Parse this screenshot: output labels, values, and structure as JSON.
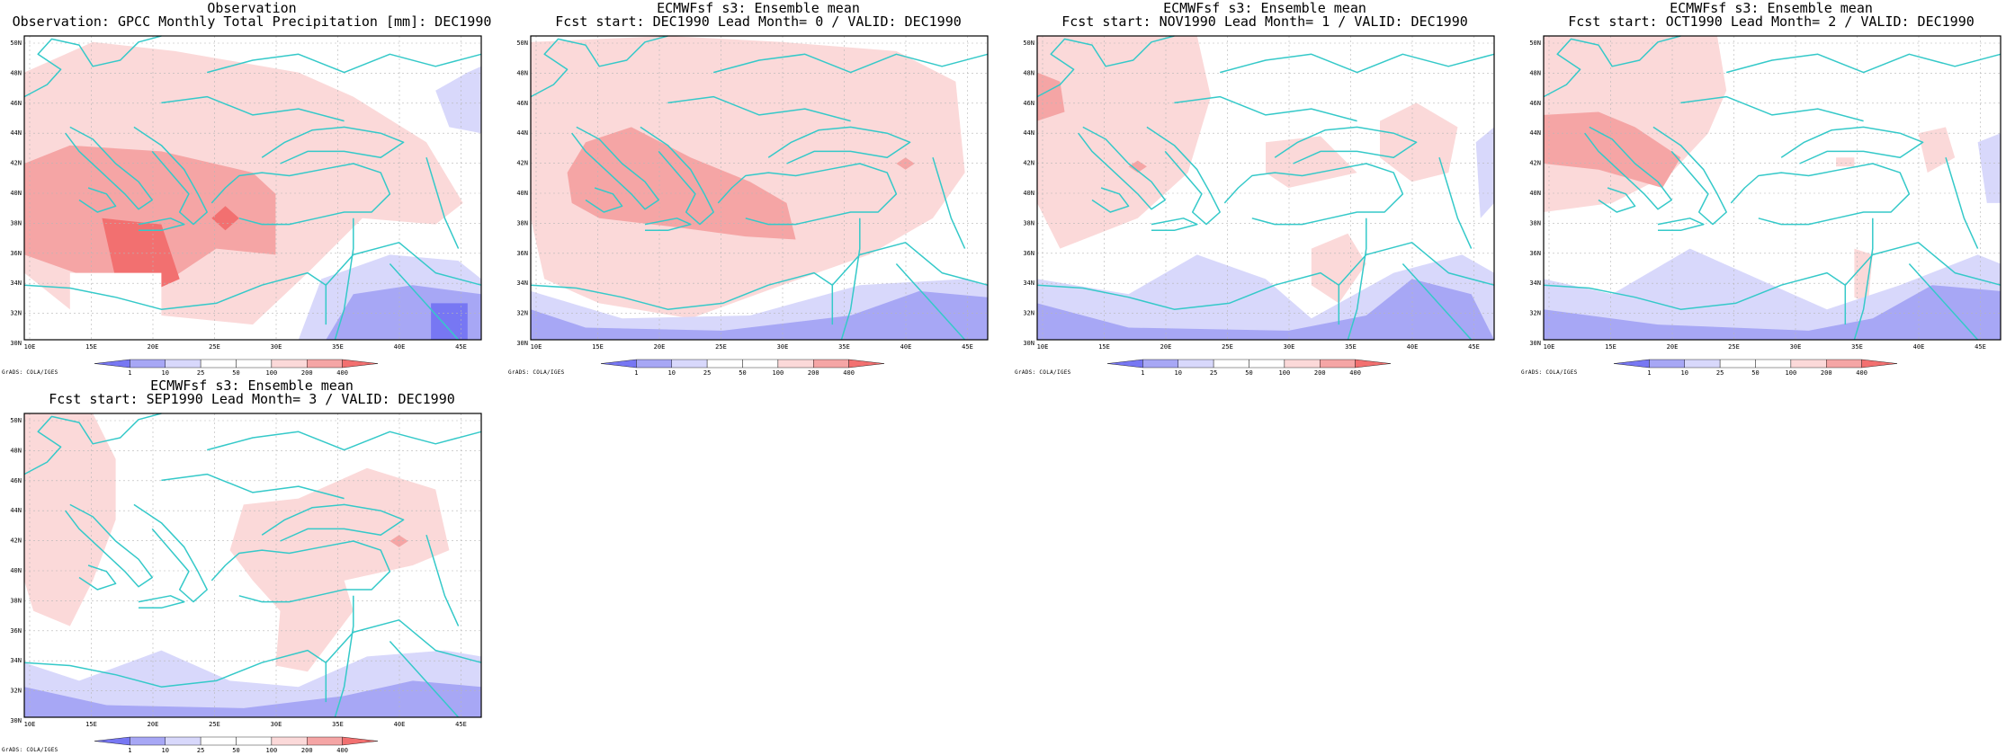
{
  "colors": {
    "neg3": "#7777f3",
    "neg2": "#a7a7f5",
    "neg1": "#d8d8fb",
    "zero": "#ffffff",
    "pos1": "#fbd9d9",
    "pos2": "#f5a5a5",
    "pos3": "#f27070",
    "coast": "#35c9c9",
    "grid": "#b6b6b6"
  },
  "axes": {
    "lat_labels": [
      "50N",
      "48N",
      "46N",
      "44N",
      "42N",
      "40N",
      "38N",
      "36N",
      "34N",
      "32N",
      "30N"
    ],
    "lon_labels": [
      "10E",
      "15E",
      "20E",
      "25E",
      "30E",
      "35E",
      "40E",
      "45E"
    ]
  },
  "colorbar": {
    "labels": [
      "1",
      "10",
      "25",
      "50",
      "100",
      "200",
      "400"
    ]
  },
  "credit": "GrADS: COLA/IGES",
  "panels": [
    {
      "title1": "Observation",
      "title2": "Observation: GPCC Monthly Total Precipitation [mm]: DEC1990"
    },
    {
      "title1": "ECMWFsf s3: Ensemble mean",
      "title2": "Fcst start: DEC1990  Lead Month= 0 / VALID: DEC1990"
    },
    {
      "title1": "ECMWFsf s3: Ensemble mean",
      "title2": "Fcst start: NOV1990  Lead Month= 1 / VALID: DEC1990"
    },
    {
      "title1": "ECMWFsf s3: Ensemble mean",
      "title2": "Fcst start: OCT1990  Lead Month= 2 / VALID: DEC1990"
    },
    {
      "title1": "ECMWFsf s3: Ensemble mean",
      "title2": "Fcst start: SEP1990  Lead Month= 3 / VALID: DEC1990"
    }
  ]
}
